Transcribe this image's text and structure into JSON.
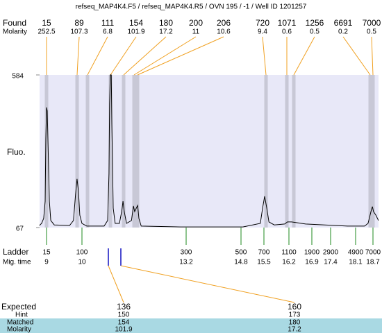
{
  "title": "refseq_MAP4K4.F5 / refseq_MAP4K4.R5 / OVN 195 / -1 / Well ID 1201257",
  "found": {
    "label": "Found",
    "sizes": [
      15,
      89,
      111,
      154,
      180,
      200,
      206,
      720,
      1071,
      1256,
      6691,
      7000
    ],
    "molarity_label": "Molarity",
    "molarity": [
      252.5,
      107.3,
      6.8,
      101.9,
      17.2,
      11,
      10.6,
      9.4,
      0.6,
      0.5,
      0.2,
      0.5
    ]
  },
  "chart_data": {
    "type": "line",
    "y_label": "Fluo.",
    "ylim": [
      67,
      584
    ],
    "yticks": [
      67,
      584
    ],
    "ladder_label": "Ladder",
    "ladder_sizes": [
      15,
      100,
      300,
      500,
      700,
      1100,
      1900,
      2900,
      4900,
      7000
    ],
    "time_label": "Mig. time",
    "ladder_times": [
      9,
      10,
      13.2,
      14.8,
      15.5,
      16.2,
      16.9,
      17.4,
      18.1,
      18.7
    ],
    "x": [
      8.8,
      8.86,
      8.92,
      8.96,
      8.98,
      9.0,
      9.02,
      9.04,
      9.08,
      9.12,
      9.22,
      9.65,
      9.76,
      9.82,
      9.86,
      9.9,
      9.94,
      10.0,
      10.15,
      10.68,
      10.79,
      10.83,
      10.85,
      10.87,
      10.9,
      10.92,
      10.96,
      11.02,
      11.15,
      11.22,
      11.26,
      11.3,
      11.37,
      11.52,
      11.58,
      11.62,
      11.67,
      11.71,
      11.75,
      11.82,
      13.03,
      14.86,
      15.39,
      15.46,
      15.52,
      15.58,
      15.64,
      15.79,
      16.08,
      16.16,
      16.28,
      16.71,
      17.87,
      18.41,
      18.53,
      18.63,
      18.68,
      18.72,
      18.8,
      18.89
    ],
    "series": [
      {
        "color": "#000000",
        "values": [
          74,
          81,
          98,
          156,
          368,
          474,
          462,
          368,
          156,
          91,
          76,
          74,
          91,
          180,
          232,
          192,
          109,
          81,
          72,
          72,
          91,
          250,
          485,
          584,
          584,
          415,
          133,
          81,
          81,
          121,
          156,
          121,
          81,
          91,
          140,
          121,
          133,
          142,
          98,
          72,
          69,
          69,
          81,
          133,
          173,
          133,
          86,
          76,
          79,
          86,
          86,
          79,
          72,
          72,
          81,
          121,
          138,
          121,
          109,
          91
        ]
      }
    ]
  },
  "expected": {
    "label": "Expected",
    "values": [
      136,
      160
    ],
    "hint_label": "Hint",
    "hint": [
      150,
      173
    ],
    "matched_label": "Matched",
    "matched": [
      154,
      180
    ],
    "molarity_label": "Molarity",
    "molarity": [
      101.9,
      17.2
    ]
  }
}
